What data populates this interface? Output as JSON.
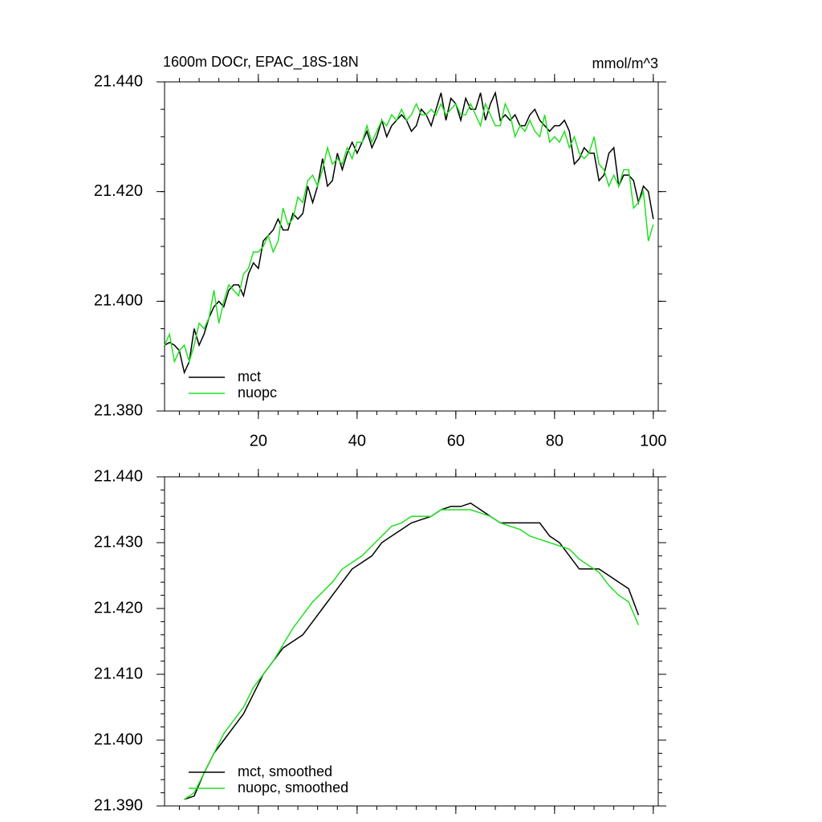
{
  "chart_data": [
    {
      "type": "line",
      "title": "1600m DOCr, EPAC_18S-18N",
      "units": "mmol/m^3",
      "x": [
        1,
        2,
        3,
        4,
        5,
        6,
        7,
        8,
        9,
        10,
        11,
        12,
        13,
        14,
        15,
        16,
        17,
        18,
        19,
        20,
        21,
        22,
        23,
        24,
        25,
        26,
        27,
        28,
        29,
        30,
        31,
        32,
        33,
        34,
        35,
        36,
        37,
        38,
        39,
        40,
        41,
        42,
        43,
        44,
        45,
        46,
        47,
        48,
        49,
        50,
        51,
        52,
        53,
        54,
        55,
        56,
        57,
        58,
        59,
        60,
        61,
        62,
        63,
        64,
        65,
        66,
        67,
        68,
        69,
        70,
        71,
        72,
        73,
        74,
        75,
        76,
        77,
        78,
        79,
        80,
        81,
        82,
        83,
        84,
        85,
        86,
        87,
        88,
        89,
        90,
        91,
        92,
        93,
        94,
        95,
        96,
        97,
        98,
        99,
        100
      ],
      "series": [
        {
          "name": "mct",
          "color": "#000000",
          "values": [
            21.392,
            21.3925,
            21.392,
            21.391,
            21.387,
            21.389,
            21.395,
            21.392,
            21.394,
            21.397,
            21.399,
            21.4,
            21.399,
            21.402,
            21.403,
            21.403,
            21.401,
            21.405,
            21.407,
            21.406,
            21.411,
            21.412,
            21.413,
            21.415,
            21.413,
            21.413,
            21.416,
            21.415,
            21.416,
            21.421,
            21.418,
            21.421,
            21.426,
            21.421,
            21.422,
            21.427,
            21.424,
            21.427,
            21.429,
            21.427,
            21.429,
            21.431,
            21.428,
            21.43,
            21.433,
            21.43,
            21.432,
            21.433,
            21.434,
            21.433,
            21.431,
            21.432,
            21.435,
            21.434,
            21.432,
            21.435,
            21.438,
            21.433,
            21.437,
            21.436,
            21.433,
            21.437,
            21.435,
            21.435,
            21.438,
            21.433,
            21.436,
            21.438,
            21.433,
            21.434,
            21.433,
            21.434,
            21.432,
            21.432,
            21.434,
            21.435,
            21.433,
            21.432,
            21.431,
            21.432,
            21.432,
            21.433,
            21.431,
            21.425,
            21.426,
            21.428,
            21.427,
            21.427,
            21.422,
            21.423,
            21.427,
            21.428,
            21.421,
            21.423,
            21.423,
            21.422,
            21.418,
            21.421,
            21.42,
            21.415
          ]
        },
        {
          "name": "nuopc",
          "color": "#22e022",
          "values": [
            21.392,
            21.394,
            21.389,
            21.391,
            21.392,
            21.389,
            21.392,
            21.396,
            21.395,
            21.397,
            21.402,
            21.396,
            21.4,
            21.403,
            21.402,
            21.401,
            21.405,
            21.406,
            21.409,
            21.409,
            21.41,
            21.412,
            21.409,
            21.411,
            21.417,
            21.414,
            21.415,
            21.419,
            21.418,
            21.422,
            21.423,
            21.421,
            21.424,
            21.428,
            21.425,
            21.426,
            21.425,
            21.428,
            21.426,
            21.429,
            21.429,
            21.432,
            21.429,
            21.431,
            21.433,
            21.432,
            21.434,
            21.433,
            21.435,
            21.433,
            21.434,
            21.436,
            21.434,
            21.434,
            21.435,
            21.434,
            21.436,
            21.434,
            21.435,
            21.436,
            21.434,
            21.434,
            21.436,
            21.434,
            21.432,
            21.436,
            21.434,
            21.432,
            21.432,
            21.436,
            21.434,
            21.43,
            21.432,
            21.431,
            21.433,
            21.431,
            21.43,
            21.434,
            21.429,
            21.43,
            21.429,
            21.431,
            21.428,
            21.43,
            21.427,
            21.426,
            21.427,
            21.43,
            21.425,
            21.424,
            21.421,
            21.423,
            21.421,
            21.424,
            21.424,
            21.417,
            21.418,
            21.42,
            21.411,
            21.414
          ]
        }
      ],
      "xlim": [
        1,
        101
      ],
      "xticks": [
        20,
        40,
        60,
        80,
        100
      ],
      "ylim": [
        21.38,
        21.44
      ],
      "yticks": [
        {
          "value": 21.44,
          "label": "21.440"
        },
        {
          "value": 21.42,
          "label": "21.420"
        },
        {
          "value": 21.4,
          "label": "21.400"
        },
        {
          "value": 21.38,
          "label": "21.380"
        }
      ],
      "legend": "lower left"
    },
    {
      "type": "line",
      "x": [
        5,
        7,
        9,
        11,
        13,
        15,
        17,
        19,
        21,
        23,
        25,
        27,
        29,
        31,
        33,
        35,
        37,
        39,
        41,
        43,
        45,
        47,
        49,
        51,
        53,
        55,
        57,
        59,
        61,
        63,
        65,
        67,
        69,
        71,
        73,
        75,
        77,
        79,
        81,
        83,
        85,
        87,
        89,
        91,
        93,
        95,
        97
      ],
      "series": [
        {
          "name": "mct, smoothed",
          "color": "#000000",
          "values": [
            21.391,
            21.3915,
            21.395,
            21.398,
            21.4,
            21.402,
            21.404,
            21.407,
            21.41,
            21.412,
            21.414,
            21.415,
            21.416,
            21.418,
            21.42,
            21.422,
            21.424,
            21.426,
            21.427,
            21.428,
            21.43,
            21.431,
            21.432,
            21.433,
            21.4335,
            21.434,
            21.435,
            21.4355,
            21.4355,
            21.436,
            21.435,
            21.434,
            21.433,
            21.433,
            21.433,
            21.433,
            21.433,
            21.431,
            21.43,
            21.428,
            21.426,
            21.426,
            21.426,
            21.425,
            21.424,
            21.423,
            21.419
          ]
        },
        {
          "name": "nuopc, smoothed",
          "color": "#22e022",
          "values": [
            21.391,
            21.392,
            21.395,
            21.398,
            21.401,
            21.403,
            21.405,
            21.408,
            21.41,
            21.412,
            21.4145,
            21.417,
            21.419,
            21.421,
            21.4225,
            21.424,
            21.426,
            21.427,
            21.428,
            21.4295,
            21.431,
            21.4325,
            21.433,
            21.434,
            21.434,
            21.434,
            21.435,
            21.435,
            21.435,
            21.435,
            21.4345,
            21.434,
            21.433,
            21.4325,
            21.432,
            21.431,
            21.4305,
            21.43,
            21.4295,
            21.429,
            21.4275,
            21.4265,
            21.4255,
            21.4235,
            21.422,
            21.421,
            21.4175
          ]
        }
      ],
      "xlim": [
        1,
        101
      ],
      "ylim": [
        21.39,
        21.44
      ],
      "yticks": [
        {
          "value": 21.44,
          "label": "21.440"
        },
        {
          "value": 21.43,
          "label": "21.430"
        },
        {
          "value": 21.42,
          "label": "21.420"
        },
        {
          "value": 21.41,
          "label": "21.410"
        },
        {
          "value": 21.4,
          "label": "21.400"
        },
        {
          "value": 21.39,
          "label": "21.390"
        }
      ],
      "legend": "lower left"
    }
  ]
}
